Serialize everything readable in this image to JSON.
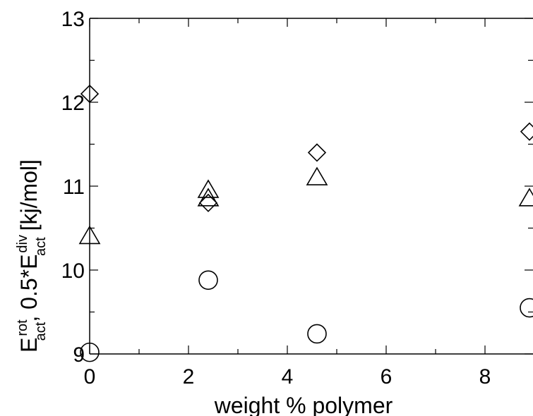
{
  "chart_data": {
    "type": "scatter",
    "title": "",
    "xlabel": "weight % polymer",
    "ylabel": {
      "E": "E",
      "rot_sup": "rot",
      "act_sub1": "act",
      "middle": ", 0.5*E",
      "div_sup": "div",
      "act_sub2": "act",
      "unit": " [kj/mol]"
    },
    "xlim": [
      0,
      8.9
    ],
    "ylim": [
      9,
      13
    ],
    "x_ticks": [
      0,
      2,
      4,
      6,
      8
    ],
    "x_tick_labels": [
      "0",
      "2",
      "4",
      "6",
      "8"
    ],
    "y_ticks": [
      9,
      10,
      11,
      12,
      13
    ],
    "y_tick_labels": [
      "9",
      "10",
      "11",
      "12",
      "13"
    ],
    "grid": false,
    "series": [
      {
        "marker": "diamond",
        "x": [
          0,
          2.4,
          4.6,
          8.9
        ],
        "y": [
          12.1,
          10.8,
          11.4,
          11.65
        ]
      },
      {
        "marker": "triangle",
        "x": [
          0,
          2.4,
          2.4,
          4.6,
          8.9
        ],
        "y": [
          10.4,
          10.95,
          10.85,
          11.1,
          10.85
        ]
      },
      {
        "marker": "circle",
        "x": [
          0,
          2.4,
          4.6,
          8.9
        ],
        "y": [
          9.02,
          9.88,
          9.24,
          9.55
        ]
      }
    ]
  }
}
